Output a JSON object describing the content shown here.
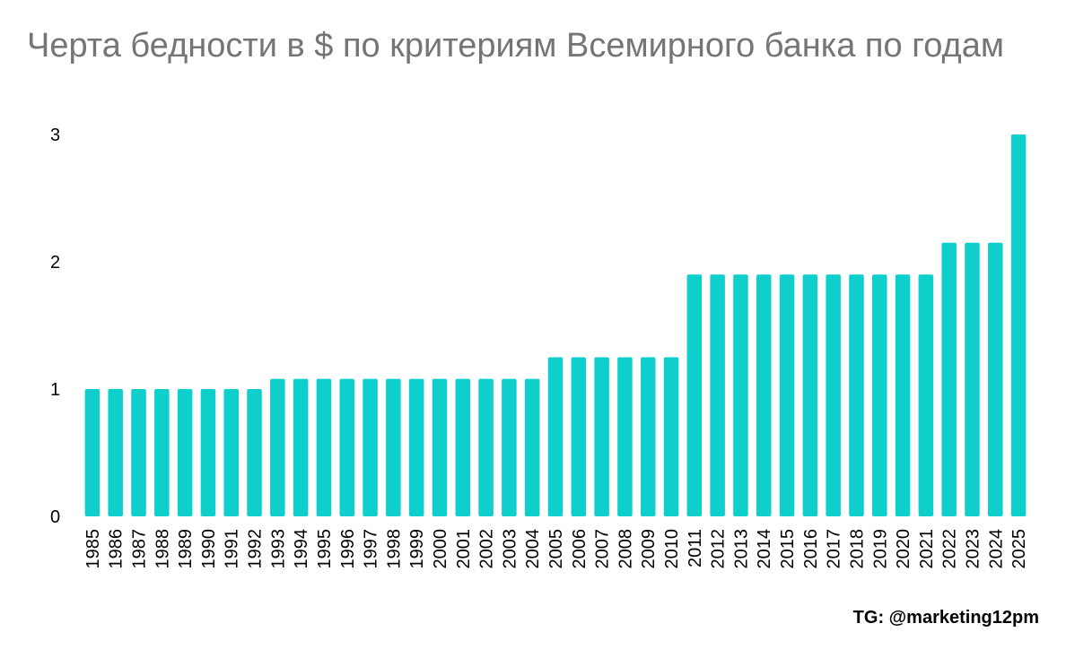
{
  "chart_data": {
    "type": "bar",
    "title": "Черта бедности в $ по критериям Всемирного банка по годам",
    "xlabel": "",
    "ylabel": "",
    "ylim": [
      0,
      3
    ],
    "yticks": [
      "0",
      "1",
      "2",
      "3"
    ],
    "grid": false,
    "legend": "none",
    "bar_color": "#0ECFCB",
    "categories": [
      "1985",
      "1986",
      "1987",
      "1988",
      "1989",
      "1990",
      "1991",
      "1992",
      "1993",
      "1994",
      "1995",
      "1996",
      "1997",
      "1998",
      "1999",
      "2000",
      "2001",
      "2002",
      "2003",
      "2004",
      "2005",
      "2006",
      "2007",
      "2008",
      "2009",
      "2010",
      "2011",
      "2012",
      "2013",
      "2014",
      "2015",
      "2016",
      "2017",
      "2018",
      "2019",
      "2020",
      "2021",
      "2022",
      "2023",
      "2024",
      "2025"
    ],
    "values": [
      1.0,
      1.0,
      1.0,
      1.0,
      1.0,
      1.0,
      1.0,
      1.0,
      1.08,
      1.08,
      1.08,
      1.08,
      1.08,
      1.08,
      1.08,
      1.08,
      1.08,
      1.08,
      1.08,
      1.08,
      1.25,
      1.25,
      1.25,
      1.25,
      1.25,
      1.25,
      1.9,
      1.9,
      1.9,
      1.9,
      1.9,
      1.9,
      1.9,
      1.9,
      1.9,
      1.9,
      1.9,
      2.15,
      2.15,
      2.15,
      3.0
    ]
  },
  "credit": "TG: @marketing12pm"
}
